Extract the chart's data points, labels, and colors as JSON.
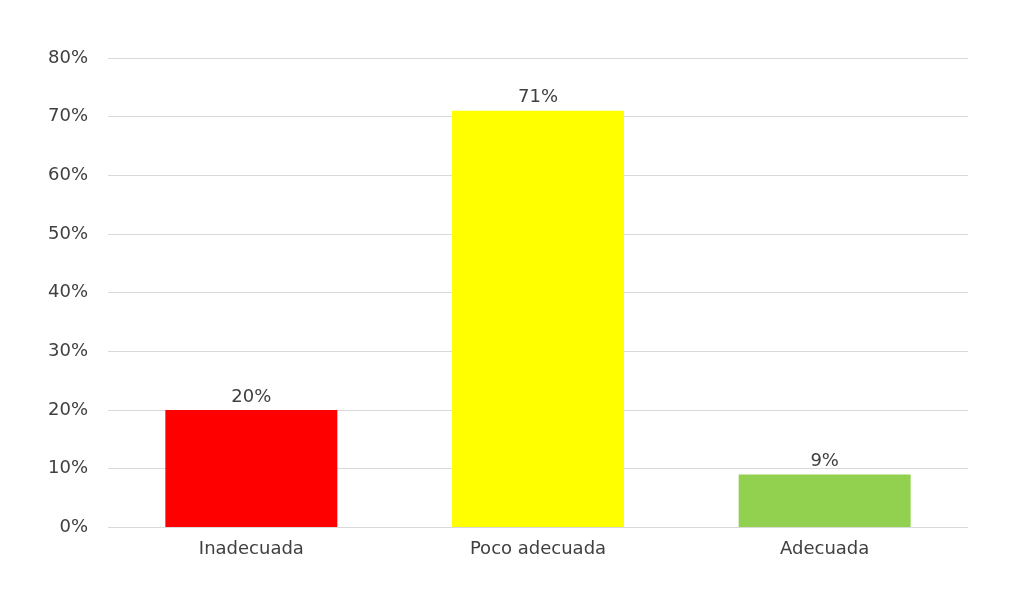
{
  "chart_data": {
    "type": "bar",
    "categories": [
      "Inadecuada",
      "Poco adecuada",
      "Adecuada"
    ],
    "values": [
      20,
      71,
      9
    ],
    "colors": [
      "#ff0000",
      "#ffff00",
      "#92d050"
    ],
    "value_labels": [
      "20%",
      "71%",
      "9%"
    ],
    "ylim": [
      0,
      80
    ],
    "yticks": [
      {
        "value": 0,
        "label": "0%"
      },
      {
        "value": 10,
        "label": "10%"
      },
      {
        "value": 20,
        "label": "20%"
      },
      {
        "value": 30,
        "label": "30%"
      },
      {
        "value": 40,
        "label": "40%"
      },
      {
        "value": 50,
        "label": "50%"
      },
      {
        "value": 60,
        "label": "60%"
      },
      {
        "value": 70,
        "label": "70%"
      },
      {
        "value": 80,
        "label": "80%"
      }
    ],
    "grid": "y"
  }
}
